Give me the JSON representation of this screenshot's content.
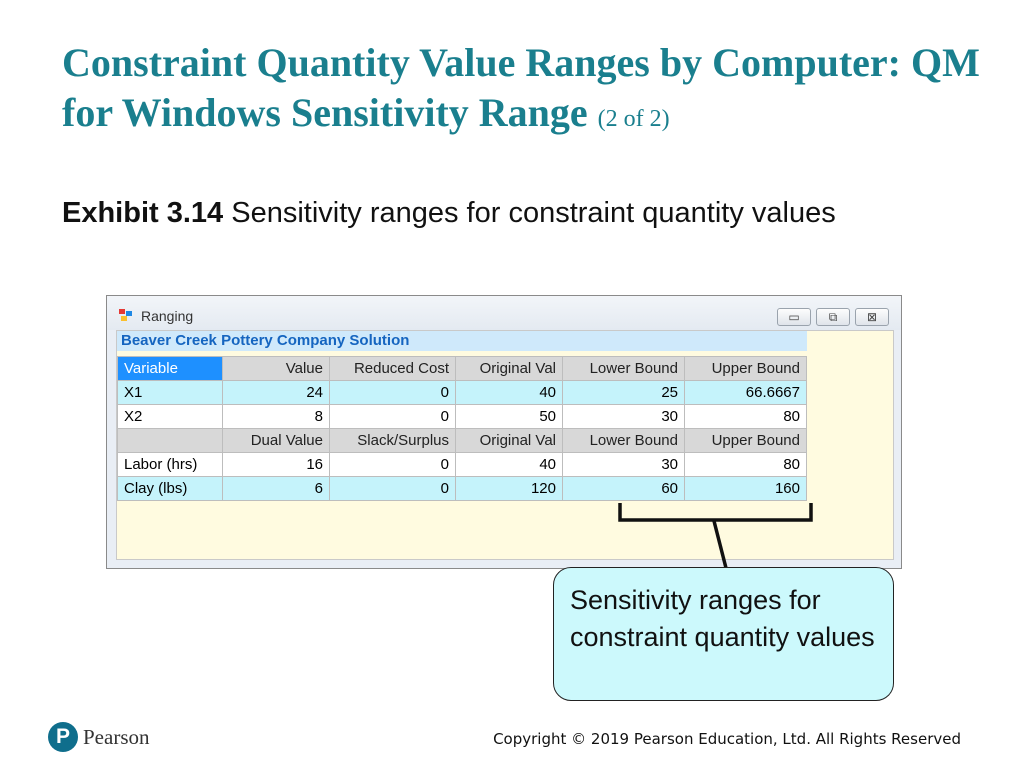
{
  "slide": {
    "title_main": "Constraint Quantity Value Ranges by Computer: QM for Windows Sensitivity Range",
    "title_sub": "(2 of 2)",
    "exhibit_label": "Exhibit 3.14",
    "exhibit_text": "Sensitivity ranges for constraint quantity values"
  },
  "window": {
    "title": "Ranging",
    "buttons": {
      "minimize": "▭",
      "maximize": "⧉",
      "close": "⊠"
    },
    "solution_header": "Beaver Creek Pottery Company Solution"
  },
  "table": {
    "variable_header": [
      "Variable",
      "Value",
      "Reduced Cost",
      "Original Val",
      "Lower Bound",
      "Upper Bound"
    ],
    "variables": [
      [
        "X1",
        "24",
        "0",
        "40",
        "25",
        "66.6667"
      ],
      [
        "X2",
        "8",
        "0",
        "50",
        "30",
        "80"
      ]
    ],
    "constraint_header": [
      "",
      "Dual Value",
      "Slack/Surplus",
      "Original Val",
      "Lower Bound",
      "Upper Bound"
    ],
    "constraints": [
      [
        "Labor (hrs)",
        "16",
        "0",
        "40",
        "30",
        "80"
      ],
      [
        "Clay (lbs)",
        "6",
        "0",
        "120",
        "60",
        "160"
      ]
    ]
  },
  "callout": {
    "text": "Sensitivity ranges for constraint quantity values"
  },
  "footer": {
    "logo_letter": "P",
    "brand": "Pearson",
    "copyright": "Copyright © 2019 Pearson Education, Ltd. All Rights Reserved"
  }
}
